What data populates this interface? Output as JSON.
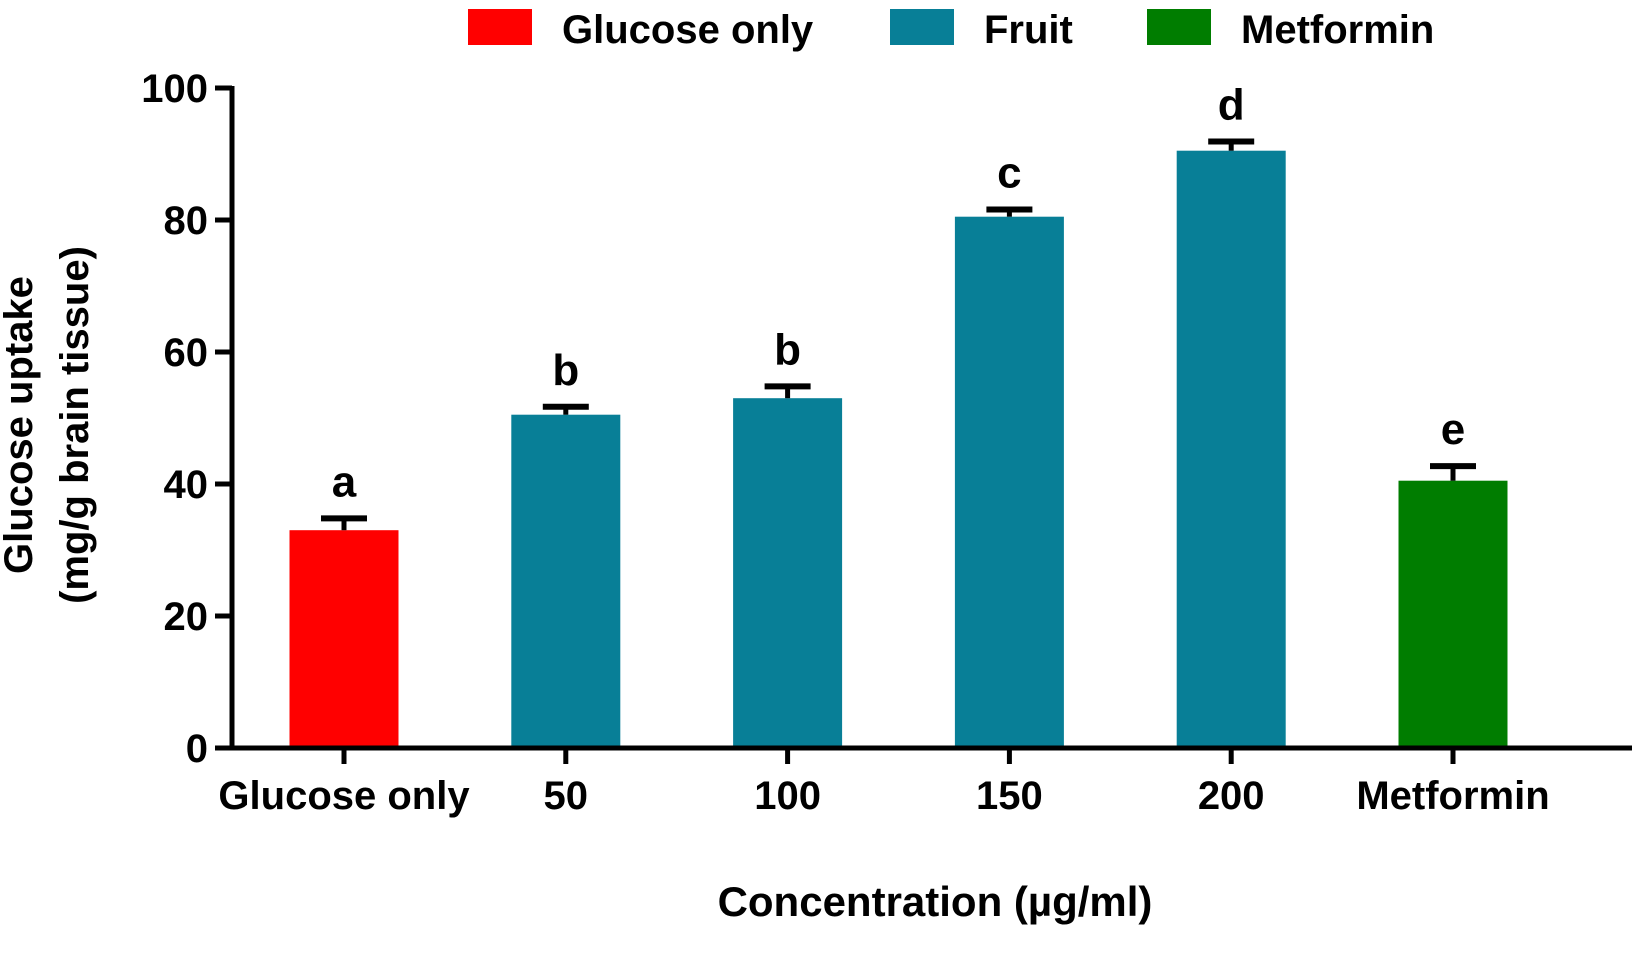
{
  "chart_data": {
    "type": "bar",
    "xlabel": "Concentration (µg/ml)",
    "ylabel_line1": "Glucose uptake",
    "ylabel_line2": "(mg/g brain tissue)",
    "ylim": [
      0,
      100
    ],
    "y_ticks": [
      0,
      20,
      40,
      60,
      80,
      100
    ],
    "grid": false,
    "legend_position": "top",
    "legend": [
      {
        "label": "Glucose only",
        "color": "#ff0000"
      },
      {
        "label": "Fruit",
        "color": "#087f97"
      },
      {
        "label": "Metformin",
        "color": "#007d00"
      }
    ],
    "bars": [
      {
        "category": "Glucose only",
        "value": 33,
        "error": 1.8,
        "letter": "a",
        "color": "#ff0000"
      },
      {
        "category": "50",
        "value": 50.5,
        "error": 1.2,
        "letter": "b",
        "color": "#087f97"
      },
      {
        "category": "100",
        "value": 53,
        "error": 1.8,
        "letter": "b",
        "color": "#087f97"
      },
      {
        "category": "150",
        "value": 80.5,
        "error": 1.1,
        "letter": "c",
        "color": "#087f97"
      },
      {
        "category": "200",
        "value": 90.5,
        "error": 1.4,
        "letter": "d",
        "color": "#087f97"
      },
      {
        "category": "Metformin",
        "value": 40.5,
        "error": 2.2,
        "letter": "e",
        "color": "#007d00"
      }
    ]
  }
}
